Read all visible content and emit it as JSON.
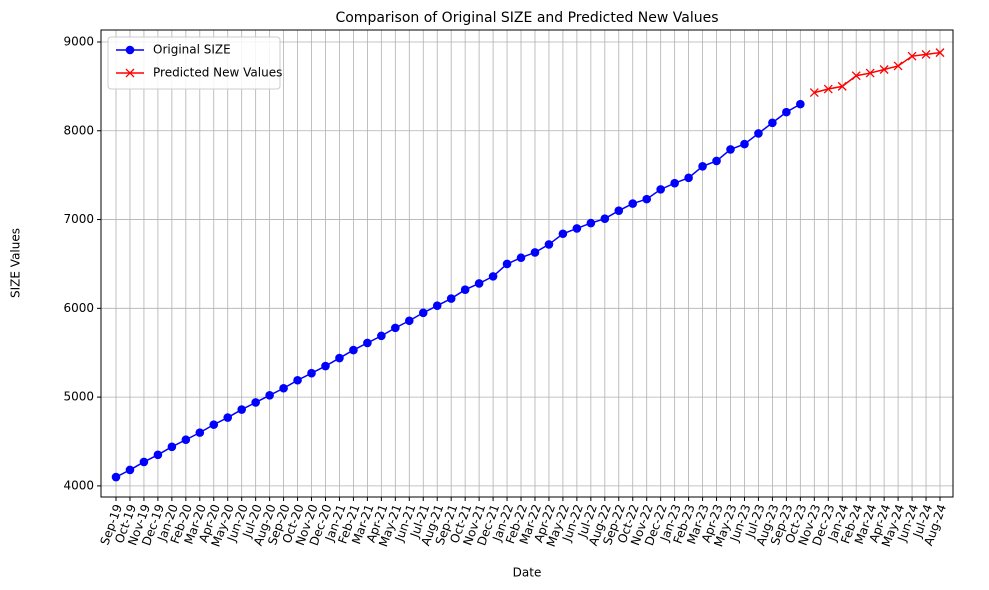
{
  "chart_data": {
    "type": "line",
    "title": "Comparison of Original SIZE and Predicted New Values",
    "x_label": "Date",
    "y_label": "SIZE Values",
    "categories": [
      "Sep-19",
      "Oct-19",
      "Nov-19",
      "Dec-19",
      "Jan-20",
      "Feb-20",
      "Mar-20",
      "Apr-20",
      "May-20",
      "Jun-20",
      "Jul-20",
      "Aug-20",
      "Sep-20",
      "Oct-20",
      "Nov-20",
      "Dec-20",
      "Jan-21",
      "Feb-21",
      "Mar-21",
      "Apr-21",
      "May-21",
      "Jun-21",
      "Jul-21",
      "Aug-21",
      "Sep-21",
      "Oct-21",
      "Nov-21",
      "Dec-21",
      "Jan-22",
      "Feb-22",
      "Mar-22",
      "Apr-22",
      "May-22",
      "Jun-22",
      "Jul-22",
      "Aug-22",
      "Sep-22",
      "Oct-22",
      "Nov-22",
      "Dec-22",
      "Jan-23",
      "Feb-23",
      "Mar-23",
      "Apr-23",
      "May-23",
      "Jun-23",
      "Jul-23",
      "Aug-23",
      "Sep-23",
      "Oct-23",
      "Nov-23",
      "Dec-23",
      "Jan-24",
      "Feb-24",
      "Mar-24",
      "Apr-24",
      "May-24",
      "Jun-24",
      "Jul-24",
      "Aug-24"
    ],
    "series": [
      {
        "name": "Original SIZE",
        "color": "#0000ff",
        "marker": "circle",
        "values": [
          4100,
          4180,
          4270,
          4350,
          4440,
          4520,
          4600,
          4690,
          4770,
          4860,
          4940,
          5020,
          5100,
          5190,
          5270,
          5350,
          5440,
          5530,
          5610,
          5690,
          5780,
          5860,
          5950,
          6030,
          6110,
          6210,
          6280,
          6360,
          6500,
          6570,
          6630,
          6720,
          6840,
          6900,
          6960,
          7010,
          7100,
          7180,
          7230,
          7340,
          7410,
          7470,
          7600,
          7660,
          7790,
          7850,
          7970,
          8090,
          8210,
          8300,
          null,
          null,
          null,
          null,
          null,
          null,
          null,
          null,
          null,
          null
        ]
      },
      {
        "name": "Predicted New Values",
        "color": "#ff0000",
        "marker": "x",
        "values": [
          null,
          null,
          null,
          null,
          null,
          null,
          null,
          null,
          null,
          null,
          null,
          null,
          null,
          null,
          null,
          null,
          null,
          null,
          null,
          null,
          null,
          null,
          null,
          null,
          null,
          null,
          null,
          null,
          null,
          null,
          null,
          null,
          null,
          null,
          null,
          null,
          null,
          null,
          null,
          null,
          null,
          null,
          null,
          null,
          null,
          null,
          null,
          null,
          null,
          null,
          8430,
          8470,
          8500,
          8620,
          8650,
          8690,
          8730,
          8840,
          8860,
          8880
        ]
      }
    ],
    "ylim": [
      3875,
      9135
    ],
    "yticks": [
      4000,
      5000,
      6000,
      7000,
      8000,
      9000
    ],
    "grid": true,
    "legend": "upper left"
  }
}
